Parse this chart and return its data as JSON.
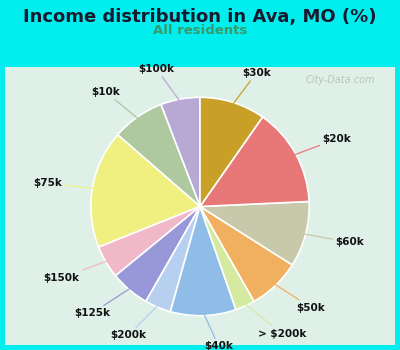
{
  "title": "Income distribution in Ava, MO (%)",
  "subtitle": "All residents",
  "title_color": "#1a1a2e",
  "subtitle_color": "#3a9a6a",
  "background_outer": "#00eeee",
  "background_inner": "#dff0e8",
  "watermark": "City-Data.com",
  "labels": [
    "$100k",
    "$10k",
    "$75k",
    "$150k",
    "$125k",
    "$200k",
    "$40k",
    "> $200k",
    "$50k",
    "$60k",
    "$20k",
    "$30k"
  ],
  "values": [
    6,
    8,
    18,
    5,
    6,
    4,
    10,
    3,
    8,
    10,
    15,
    10
  ],
  "colors": [
    "#b8a8d4",
    "#aec8a0",
    "#f0f080",
    "#f0b8c8",
    "#9898d8",
    "#b8d0f0",
    "#90bce8",
    "#d4eaa0",
    "#f0b060",
    "#c8c8aa",
    "#e87878",
    "#c8a028"
  ],
  "startangle": 90,
  "label_fontsize": 7.5,
  "label_dist": 1.28
}
